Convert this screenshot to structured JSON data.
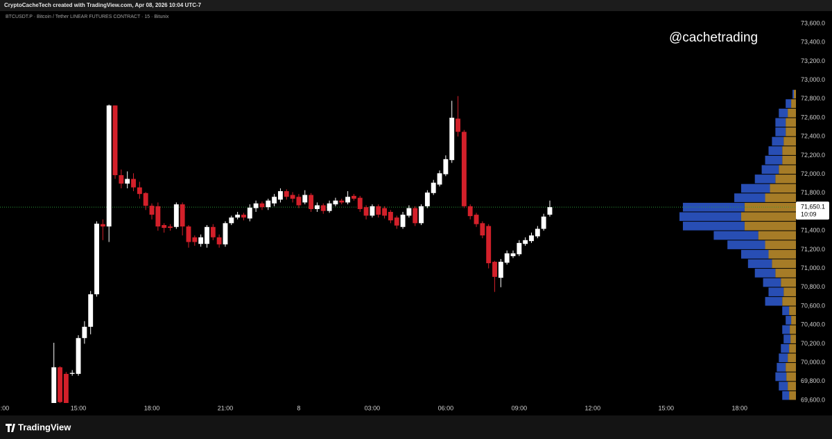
{
  "header": "CryptoCacheTech created with TradingView.com, Apr 08, 2026 10:04 UTC-7",
  "footer": {
    "logo": "TradingView"
  },
  "chart_data": {
    "type": "candlestick",
    "title": "BTCUSDT.P · Bitcoin / Tether LINEAR FUTURES CONTRACT · 15 · Bitunix",
    "annotation": "@cachetrading",
    "up_color": "#ffffff",
    "down_color": "#d3202a",
    "x": [
      14,
      14.25,
      14.5,
      14.75,
      15,
      15.25,
      15.5,
      15.75,
      16,
      16.25,
      16.5,
      16.75,
      17,
      17.25,
      17.5,
      17.75,
      18,
      18.25,
      18.5,
      18.75,
      19,
      19.25,
      19.5,
      19.75,
      20,
      20.25,
      20.5,
      20.75,
      21,
      21.25,
      21.5,
      21.75,
      22,
      22.25,
      22.5,
      22.75,
      23,
      23.25,
      23.5,
      23.75,
      24,
      24.25,
      24.5,
      24.75,
      25,
      25.25,
      25.5,
      25.75,
      26,
      26.25,
      26.5,
      26.75,
      27,
      27.25,
      27.5,
      27.75,
      28,
      28.25,
      28.5,
      28.75,
      29,
      29.25,
      29.5,
      29.75,
      30,
      30.25,
      30.5,
      30.75,
      31,
      31.25,
      31.5,
      31.75,
      32,
      32.25,
      32.5,
      32.75,
      33,
      33.25,
      33.5,
      33.75,
      34,
      34.25
    ],
    "open": [
      69550,
      69950,
      69880,
      69880,
      69880,
      70260,
      70380,
      70725,
      71470,
      71445,
      72730,
      71990,
      71900,
      71950,
      71860,
      71800,
      71665,
      71660,
      71460,
      71445,
      71440,
      71680,
      71445,
      71330,
      71260,
      71260,
      71440,
      71330,
      71255,
      71480,
      71540,
      71570,
      71530,
      71640,
      71690,
      71650,
      71690,
      71730,
      71820,
      71780,
      71760,
      71700,
      71780,
      71630,
      71670,
      71610,
      71680,
      71720,
      71700,
      71770,
      71750,
      71650,
      71560,
      71660,
      71640,
      71600,
      71540,
      71440,
      71560,
      71640,
      71480,
      71660,
      71800,
      71890,
      72000,
      72150,
      72590,
      72450,
      71660,
      71570,
      71480,
      71450,
      71070,
      70900,
      71060,
      71130,
      71150,
      71260,
      71290,
      71340,
      71420,
      71570
    ],
    "high": [
      70210,
      69960,
      69900,
      69920,
      70290,
      70440,
      70760,
      71500,
      71520,
      72740,
      72730,
      72050,
      72030,
      72010,
      71920,
      71810,
      71690,
      71700,
      71480,
      71470,
      71700,
      71700,
      71460,
      71350,
      71360,
      71460,
      71470,
      71360,
      71500,
      71560,
      71600,
      71590,
      71680,
      71720,
      71710,
      71740,
      71790,
      71850,
      71840,
      71810,
      71790,
      71830,
      71800,
      71700,
      71690,
      71720,
      71750,
      71740,
      71820,
      71790,
      71770,
      71670,
      71680,
      71680,
      71660,
      71620,
      71560,
      71600,
      71670,
      71660,
      71680,
      71830,
      71940,
      72040,
      72200,
      72780,
      72830,
      72470,
      71680,
      71590,
      71500,
      71470,
      71080,
      71100,
      71190,
      71190,
      71300,
      71330,
      71380,
      71450,
      71580,
      71720
    ],
    "low": [
      69450,
      69450,
      69450,
      69860,
      69860,
      70200,
      70300,
      70700,
      71300,
      71280,
      71950,
      71850,
      71850,
      71820,
      71740,
      71620,
      71520,
      71400,
      71380,
      71400,
      71420,
      71350,
      71220,
      71240,
      71230,
      71220,
      71300,
      71220,
      71230,
      71460,
      71520,
      71510,
      71500,
      71600,
      71620,
      71620,
      71660,
      71700,
      71730,
      71700,
      71640,
      71680,
      71600,
      71600,
      71580,
      71590,
      71660,
      71680,
      71680,
      71720,
      71600,
      71520,
      71540,
      71540,
      71530,
      71480,
      71420,
      71420,
      71540,
      71450,
      71460,
      71640,
      71780,
      71870,
      71980,
      72120,
      72400,
      71640,
      71520,
      71440,
      71320,
      71000,
      70750,
      70800,
      71040,
      71110,
      71130,
      71240,
      71270,
      71320,
      71400,
      71550
    ],
    "close": [
      69950,
      69580,
      69560,
      69890,
      70260,
      70380,
      70725,
      71475,
      71445,
      72730,
      71990,
      71900,
      71950,
      71860,
      71790,
      71665,
      71570,
      71445,
      71430,
      71430,
      71680,
      71445,
      71280,
      71280,
      71330,
      71440,
      71330,
      71255,
      71480,
      71540,
      71570,
      71540,
      71645,
      71690,
      71650,
      71720,
      71760,
      71820,
      71760,
      71740,
      71670,
      71780,
      71630,
      71670,
      71610,
      71690,
      71720,
      71700,
      71760,
      71740,
      71630,
      71560,
      71660,
      71570,
      71560,
      71510,
      71455,
      71570,
      71640,
      71480,
      71660,
      71805,
      71910,
      72010,
      72160,
      72600,
      72450,
      71660,
      71555,
      71470,
      71350,
      71055,
      70910,
      71070,
      71160,
      71160,
      71270,
      71300,
      71350,
      71420,
      71550,
      71650.1
    ],
    "xlim": [
      11.8,
      44.3
    ],
    "xticks": [
      {
        "value": 12,
        "label": ":00"
      },
      {
        "value": 15,
        "label": "15:00"
      },
      {
        "value": 18,
        "label": "18:00"
      },
      {
        "value": 21,
        "label": "21:00"
      },
      {
        "value": 24,
        "label": "8"
      },
      {
        "value": 27,
        "label": "03:00"
      },
      {
        "value": 30,
        "label": "06:00"
      },
      {
        "value": 33,
        "label": "09:00"
      },
      {
        "value": 36,
        "label": "12:00"
      },
      {
        "value": 39,
        "label": "15:00"
      },
      {
        "value": 42,
        "label": "18:00"
      }
    ],
    "ylim": [
      69600,
      73600
    ],
    "yticks": [
      {
        "value": 69600,
        "label": "69,600.0"
      },
      {
        "value": 69800,
        "label": "69,800.0"
      },
      {
        "value": 70000,
        "label": "70,000.0"
      },
      {
        "value": 70200,
        "label": "70,200.0"
      },
      {
        "value": 70400,
        "label": "70,400.0"
      },
      {
        "value": 70600,
        "label": "70,600.0"
      },
      {
        "value": 70800,
        "label": "70,800.0"
      },
      {
        "value": 71000,
        "label": "71,000.0"
      },
      {
        "value": 71200,
        "label": "71,200.0"
      },
      {
        "value": 71400,
        "label": "71,400.0"
      },
      {
        "value": 71600,
        "label": "71,600.0"
      },
      {
        "value": 71800,
        "label": "71,800.0"
      },
      {
        "value": 72000,
        "label": "72,000.0"
      },
      {
        "value": 72200,
        "label": "72,200.0"
      },
      {
        "value": 72400,
        "label": "72,400.0"
      },
      {
        "value": 72600,
        "label": "72,600.0"
      },
      {
        "value": 72800,
        "label": "72,800.0"
      },
      {
        "value": 73000,
        "label": "73,000.0"
      },
      {
        "value": 73200,
        "label": "73,200.0"
      },
      {
        "value": 73400,
        "label": "73,400.0"
      },
      {
        "value": 73600,
        "label": "73,600.0"
      }
    ],
    "last_price": {
      "value": 71650.1,
      "label": "71,650.1",
      "color": "#2e9d3c"
    },
    "countdown": "10:09",
    "volume_profile": {
      "price_levels": [
        69600,
        69700,
        69800,
        69900,
        70000,
        70100,
        70200,
        70300,
        70400,
        70500,
        70600,
        70700,
        70800,
        70900,
        71000,
        71100,
        71200,
        71300,
        71400,
        71500,
        71600,
        71700,
        71800,
        71900,
        72000,
        72100,
        72200,
        72300,
        72400,
        72500,
        72600,
        72700,
        72800
      ],
      "row_size": 100,
      "series": [
        {
          "color": "#b8892b",
          "values": [
            10,
            12,
            14,
            15,
            12,
            10,
            8,
            9,
            7,
            10,
            20,
            18,
            22,
            30,
            35,
            40,
            45,
            55,
            75,
            80,
            75,
            45,
            38,
            30,
            25,
            20,
            20,
            18,
            15,
            15,
            12,
            7,
            3
          ]
        },
        {
          "color": "#2c56c8",
          "values": [
            10,
            13,
            16,
            13,
            13,
            12,
            10,
            11,
            8,
            10,
            25,
            22,
            26,
            30,
            35,
            40,
            55,
            65,
            90,
            90,
            90,
            45,
            42,
            30,
            25,
            25,
            20,
            17,
            15,
            15,
            13,
            8,
            2
          ]
        }
      ]
    }
  }
}
